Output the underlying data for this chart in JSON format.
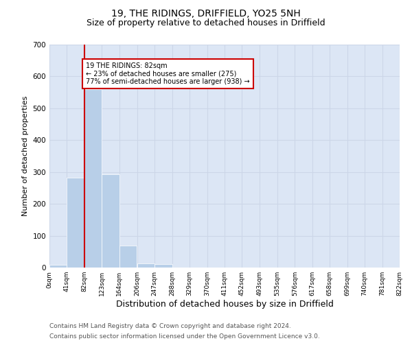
{
  "title": "19, THE RIDINGS, DRIFFIELD, YO25 5NH",
  "subtitle": "Size of property relative to detached houses in Driffield",
  "xlabel": "Distribution of detached houses by size in Driffield",
  "ylabel": "Number of detached properties",
  "bin_edges": [
    0,
    41,
    82,
    123,
    164,
    206,
    247,
    288,
    329,
    370,
    411,
    452,
    493,
    535,
    576,
    617,
    658,
    699,
    740,
    781,
    822
  ],
  "bar_heights": [
    8,
    283,
    560,
    293,
    68,
    14,
    10,
    0,
    0,
    0,
    0,
    0,
    0,
    0,
    0,
    0,
    0,
    0,
    0,
    0
  ],
  "bar_color": "#b8cfe8",
  "bar_edge_color": "#b8cfe8",
  "reference_line_x": 82,
  "reference_line_color": "#cc0000",
  "annotation_text": "19 THE RIDINGS: 82sqm\n← 23% of detached houses are smaller (275)\n77% of semi-detached houses are larger (938) →",
  "annotation_box_color": "#ffffff",
  "annotation_box_edge_color": "#cc0000",
  "ylim": [
    0,
    700
  ],
  "yticks": [
    0,
    100,
    200,
    300,
    400,
    500,
    600,
    700
  ],
  "tick_labels": [
    "0sqm",
    "41sqm",
    "82sqm",
    "123sqm",
    "164sqm",
    "206sqm",
    "247sqm",
    "288sqm",
    "329sqm",
    "370sqm",
    "411sqm",
    "452sqm",
    "493sqm",
    "535sqm",
    "576sqm",
    "617sqm",
    "658sqm",
    "699sqm",
    "740sqm",
    "781sqm",
    "822sqm"
  ],
  "grid_color": "#ccd6e8",
  "background_color": "#dce6f5",
  "footer_line1": "Contains HM Land Registry data © Crown copyright and database right 2024.",
  "footer_line2": "Contains public sector information licensed under the Open Government Licence v3.0.",
  "title_fontsize": 10,
  "subtitle_fontsize": 9,
  "xlabel_fontsize": 9,
  "ylabel_fontsize": 8,
  "footer_fontsize": 6.5
}
